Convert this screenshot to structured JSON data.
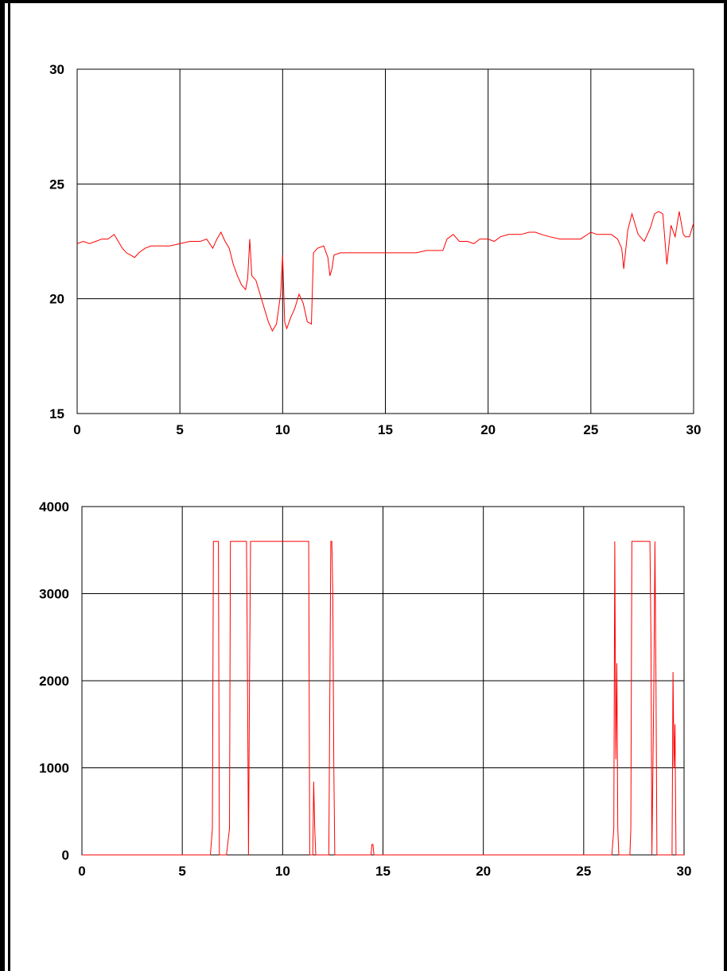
{
  "page": {
    "background": "#ffffff"
  },
  "chart_data": [
    {
      "type": "line",
      "title": "",
      "xlabel": "",
      "ylabel": "",
      "xlim": [
        0,
        30
      ],
      "ylim": [
        15,
        30
      ],
      "x_ticks": [
        "0",
        "5",
        "10",
        "15",
        "20",
        "25",
        "30"
      ],
      "y_ticks": [
        "15",
        "20",
        "25",
        "30"
      ],
      "x_tick_values": [
        0,
        5,
        10,
        15,
        20,
        25,
        30
      ],
      "y_tick_values": [
        15,
        20,
        25,
        30
      ],
      "grid": true,
      "legend": "none",
      "series_color": "#ff0000",
      "series": [
        {
          "x": [
            0,
            0.3,
            0.6,
            0.9,
            1.2,
            1.5,
            1.8,
            2.0,
            2.2,
            2.4,
            2.6,
            2.8,
            3.0,
            3.3,
            3.6,
            4.0,
            4.5,
            5.0,
            5.5,
            6.0,
            6.3,
            6.6,
            6.8,
            7.0,
            7.2,
            7.4,
            7.6,
            7.8,
            8.0,
            8.2,
            8.3,
            8.4,
            8.5,
            8.7,
            8.9,
            9.1,
            9.3,
            9.5,
            9.7,
            9.9,
            10.0,
            10.1,
            10.2,
            10.4,
            10.6,
            10.8,
            11.0,
            11.2,
            11.4,
            11.5,
            11.7,
            12.0,
            12.2,
            12.3,
            12.4,
            12.5,
            12.8,
            13.0,
            13.5,
            14.0,
            14.5,
            15.0,
            15.5,
            16.0,
            16.5,
            17.0,
            17.5,
            17.8,
            18.0,
            18.3,
            18.6,
            19.0,
            19.3,
            19.6,
            20.0,
            20.3,
            20.6,
            21.0,
            21.3,
            21.6,
            22.0,
            22.3,
            22.6,
            23.0,
            23.5,
            24.0,
            24.5,
            25.0,
            25.3,
            25.6,
            26.0,
            26.3,
            26.5,
            26.6,
            26.8,
            27.0,
            27.3,
            27.6,
            27.9,
            28.1,
            28.3,
            28.5,
            28.7,
            28.9,
            29.1,
            29.3,
            29.5,
            29.6,
            29.8,
            30.0
          ],
          "values": [
            22.4,
            22.5,
            22.4,
            22.5,
            22.6,
            22.6,
            22.8,
            22.5,
            22.2,
            22.0,
            21.9,
            21.8,
            22.0,
            22.2,
            22.3,
            22.3,
            22.3,
            22.4,
            22.5,
            22.5,
            22.6,
            22.2,
            22.6,
            22.9,
            22.5,
            22.2,
            21.5,
            21.0,
            20.6,
            20.4,
            20.9,
            22.6,
            21.0,
            20.8,
            20.2,
            19.6,
            19.0,
            18.6,
            18.9,
            20.2,
            21.9,
            19.0,
            18.7,
            19.2,
            19.6,
            20.2,
            19.8,
            19.0,
            18.9,
            22.0,
            22.2,
            22.3,
            21.8,
            21.0,
            21.3,
            21.9,
            22.0,
            22.0,
            22.0,
            22.0,
            22.0,
            22.0,
            22.0,
            22.0,
            22.0,
            22.1,
            22.1,
            22.1,
            22.6,
            22.8,
            22.5,
            22.5,
            22.4,
            22.6,
            22.6,
            22.5,
            22.7,
            22.8,
            22.8,
            22.8,
            22.9,
            22.9,
            22.8,
            22.7,
            22.6,
            22.6,
            22.6,
            22.9,
            22.8,
            22.8,
            22.8,
            22.6,
            22.2,
            21.3,
            23.0,
            23.7,
            22.8,
            22.5,
            23.1,
            23.7,
            23.8,
            23.7,
            21.5,
            23.2,
            22.7,
            23.8,
            22.8,
            22.7,
            22.7,
            23.3
          ]
        }
      ]
    },
    {
      "type": "line",
      "title": "",
      "xlabel": "",
      "ylabel": "",
      "xlim": [
        0,
        30
      ],
      "ylim": [
        0,
        4000
      ],
      "x_ticks": [
        "0",
        "5",
        "10",
        "15",
        "20",
        "25",
        "30"
      ],
      "y_ticks": [
        "0",
        "1000",
        "2000",
        "3000",
        "4000"
      ],
      "x_tick_values": [
        0,
        5,
        10,
        15,
        20,
        25,
        30
      ],
      "y_tick_values": [
        0,
        1000,
        2000,
        3000,
        4000
      ],
      "grid": true,
      "legend": "none",
      "series_color": "#ff0000",
      "series": [
        {
          "x": [
            0,
            6.4,
            6.5,
            6.55,
            6.8,
            6.85,
            7.2,
            7.35,
            7.4,
            8.2,
            8.25,
            8.3,
            8.35,
            8.4,
            11.3,
            11.35,
            11.5,
            11.55,
            11.6,
            11.65,
            12.3,
            12.4,
            12.45,
            12.5,
            12.55,
            12.6,
            14.4,
            14.45,
            14.5,
            14.55,
            26.4,
            26.5,
            26.55,
            26.6,
            26.65,
            26.7,
            26.75,
            26.8,
            27.3,
            27.35,
            27.4,
            28.3,
            28.35,
            28.4,
            28.5,
            28.55,
            28.6,
            28.65,
            29.3,
            29.4,
            29.45,
            29.5,
            29.55,
            29.6,
            30.0
          ],
          "values": [
            0,
            0,
            300,
            3600,
            3600,
            0,
            0,
            300,
            3600,
            3600,
            2000,
            0,
            2000,
            3600,
            3600,
            0,
            0,
            840,
            300,
            0,
            0,
            3600,
            3600,
            3000,
            1000,
            0,
            0,
            120,
            120,
            0,
            0,
            300,
            3600,
            1100,
            2200,
            300,
            0,
            0,
            0,
            300,
            3600,
            3600,
            2500,
            0,
            2000,
            3600,
            2000,
            0,
            0,
            0,
            2100,
            1000,
            1500,
            0,
            0
          ]
        }
      ]
    }
  ]
}
